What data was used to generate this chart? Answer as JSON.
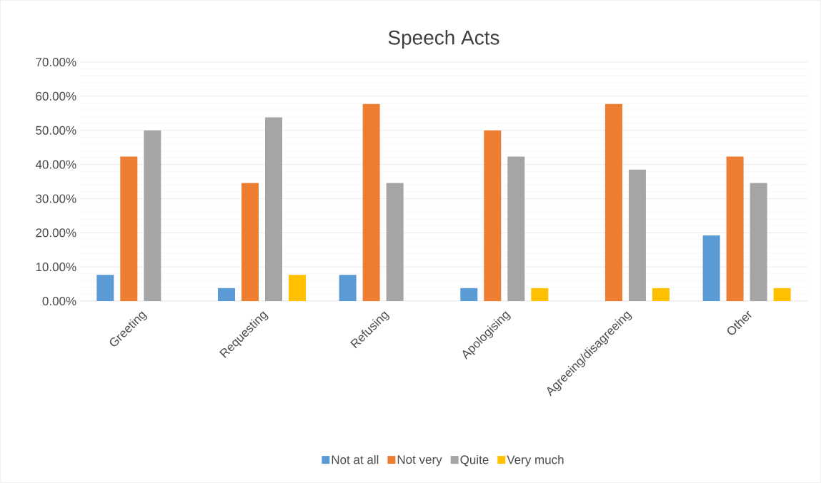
{
  "chart_data": {
    "type": "bar",
    "title": "Speech Acts",
    "categories": [
      "Greeting",
      "Requesting",
      "Refusing",
      "Apologising",
      "Agreeing/disagreeing",
      "Other"
    ],
    "series": [
      {
        "name": "Not at all",
        "color": "#5b9bd5",
        "values": [
          7.7,
          3.8,
          7.7,
          3.8,
          0,
          19.2
        ]
      },
      {
        "name": "Not very",
        "color": "#ed7d31",
        "values": [
          42.3,
          34.6,
          57.7,
          50,
          57.7,
          42.3
        ]
      },
      {
        "name": "Quite",
        "color": "#a5a5a5",
        "values": [
          50,
          53.8,
          34.6,
          42.3,
          38.5,
          34.6
        ]
      },
      {
        "name": "Very much",
        "color": "#ffc000",
        "values": [
          0,
          7.7,
          0,
          3.8,
          3.8,
          3.8
        ]
      }
    ],
    "ylim": [
      0,
      70
    ],
    "yticks": [
      {
        "value": 0,
        "label": "0.00%"
      },
      {
        "value": 10,
        "label": "10.00%"
      },
      {
        "value": 20,
        "label": "20.00%"
      },
      {
        "value": 30,
        "label": "30.00%"
      },
      {
        "value": 40,
        "label": "40.00%"
      },
      {
        "value": 50,
        "label": "50.00%"
      },
      {
        "value": 60,
        "label": "60.00%"
      },
      {
        "value": 70,
        "label": "70.00%"
      }
    ],
    "grid": "y",
    "legend": "bottom"
  }
}
